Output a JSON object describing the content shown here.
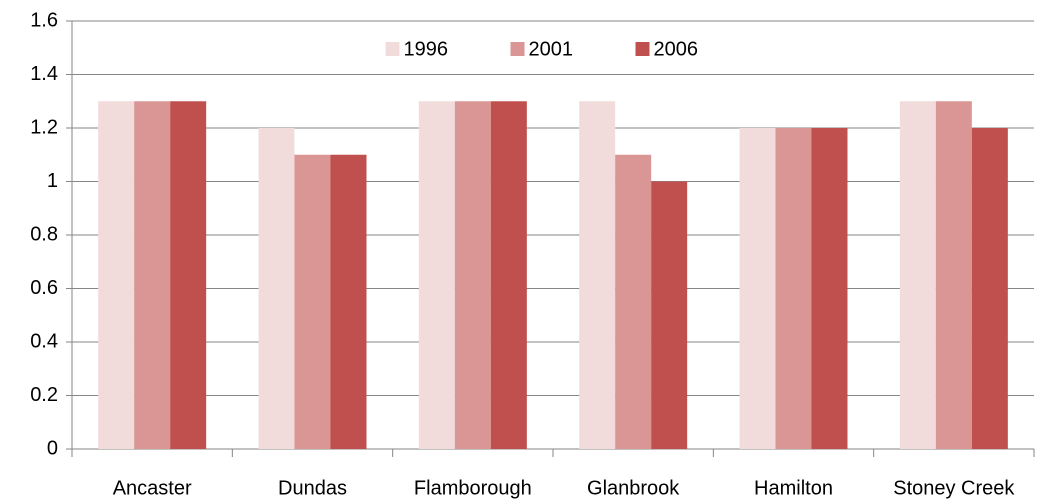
{
  "chart_data": {
    "type": "bar",
    "categories": [
      "Ancaster",
      "Dundas",
      "Flamborough",
      "Glanbrook",
      "Hamilton",
      "Stoney Creek"
    ],
    "series": [
      {
        "name": "1996",
        "color": "#f2dcdb",
        "values": [
          1.3,
          1.2,
          1.3,
          1.3,
          1.2,
          1.3
        ]
      },
      {
        "name": "2001",
        "color": "#d99694",
        "values": [
          1.3,
          1.1,
          1.3,
          1.1,
          1.2,
          1.3
        ]
      },
      {
        "name": "2006",
        "color": "#c0504d",
        "values": [
          1.3,
          1.1,
          1.3,
          1.0,
          1.2,
          1.2
        ]
      }
    ],
    "ylim": [
      0,
      1.6
    ],
    "yticks": [
      0,
      0.2,
      0.4,
      0.6,
      0.8,
      1,
      1.2,
      1.4,
      1.6
    ],
    "grid": true,
    "legend": "top"
  }
}
